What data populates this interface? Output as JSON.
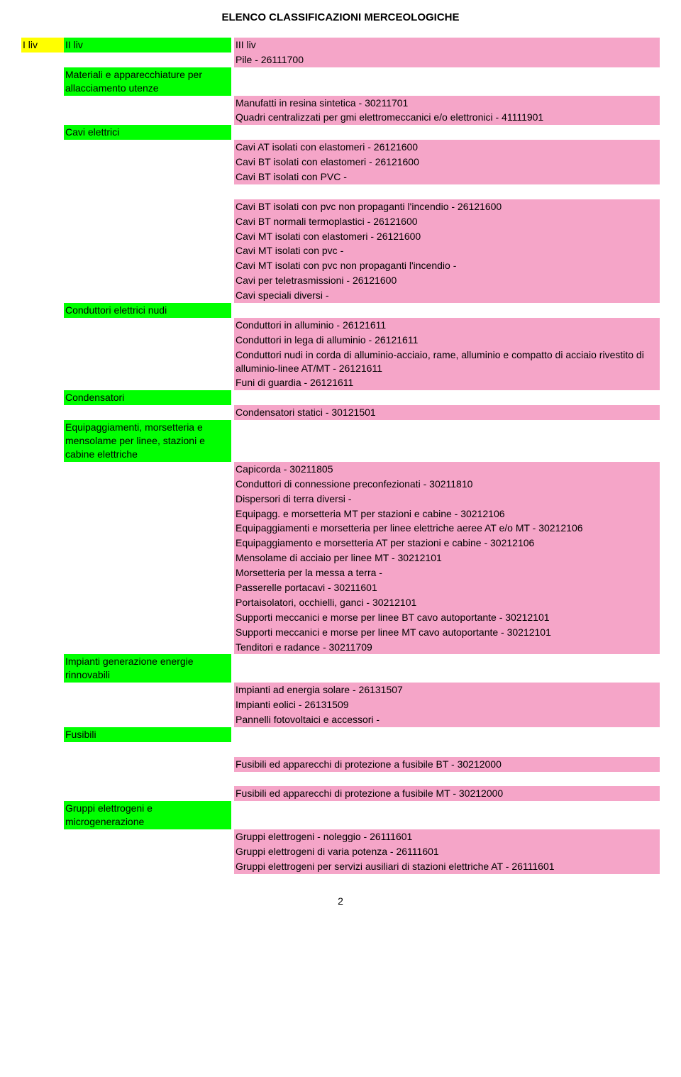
{
  "page_title": "ELENCO CLASSIFICAZIONI MERCEOLOGICHE",
  "page_number": "2",
  "colors": {
    "col1_bg": "#ffff00",
    "col2_bg": "#00ff00",
    "col3_bg": "#f5a5c8",
    "text": "#000000"
  },
  "header": {
    "c1": "I liv",
    "c2": "II liv",
    "c3": "III liv"
  },
  "blocks": [
    {
      "c3": "Pile - 26111700"
    },
    {
      "c2": "Materiali e apparecchiature per allacciamento utenze"
    },
    {
      "c3": "Manufatti in resina sintetica - 30211701"
    },
    {
      "c3": "Quadri centralizzati per gmi elettromeccanici e/o elettronici - 41111901"
    },
    {
      "c2": "Cavi elettrici"
    },
    {
      "c3": "Cavi AT isolati con elastomeri - 26121600"
    },
    {
      "c3": "Cavi BT isolati con elastomeri - 26121600"
    },
    {
      "c3": "Cavi BT isolati con PVC -"
    },
    {
      "gap": true
    },
    {
      "c3": "Cavi BT isolati con pvc non propaganti l'incendio - 26121600"
    },
    {
      "c3": "Cavi BT normali termoplastici - 26121600"
    },
    {
      "c3": "Cavi MT isolati con elastomeri - 26121600"
    },
    {
      "c3": "Cavi MT isolati con pvc -"
    },
    {
      "c3": "Cavi MT isolati con pvc non propaganti l'incendio -"
    },
    {
      "c3": "Cavi per teletrasmissioni - 26121600"
    },
    {
      "c3": "Cavi speciali diversi -"
    },
    {
      "c2": "Conduttori elettrici nudi"
    },
    {
      "c3": "Conduttori in alluminio - 26121611"
    },
    {
      "c3": "Conduttori in lega di alluminio - 26121611"
    },
    {
      "c3": "Conduttori nudi in corda di alluminio-acciaio, rame, alluminio e compatto di acciaio rivestito di alluminio-linee AT/MT - 26121611"
    },
    {
      "c3": "Funi di guardia - 26121611"
    },
    {
      "c2": "Condensatori"
    },
    {
      "c3": "Condensatori statici - 30121501"
    },
    {
      "c2": "Equipaggiamenti, morsetteria e mensolame per linee, stazioni e cabine elettriche"
    },
    {
      "c3": "Capicorda - 30211805"
    },
    {
      "c3": "Conduttori di connessione preconfezionati - 30211810"
    },
    {
      "c3": "Dispersori di terra diversi -"
    },
    {
      "c3": "Equipagg. e morsetteria MT per stazioni e cabine - 30212106"
    },
    {
      "c3": "Equipaggiamenti e morsetteria per linee elettriche aeree AT e/o MT - 30212106"
    },
    {
      "c3": "Equipaggiamento e morsetteria AT per stazioni e cabine - 30212106"
    },
    {
      "c3": "Mensolame di acciaio per linee MT - 30212101"
    },
    {
      "c3": "Morsetteria per la messa a terra -"
    },
    {
      "c3": "Passerelle portacavi - 30211601"
    },
    {
      "c3": "Portaisolatori, occhielli, ganci - 30212101"
    },
    {
      "c3": "Supporti meccanici e morse per linee BT cavo autoportante - 30212101"
    },
    {
      "c3": "Supporti meccanici e morse per linee MT cavo autoportante - 30212101"
    },
    {
      "c3": "Tenditori e radance - 30211709"
    },
    {
      "c2": "Impianti generazione energie rinnovabili"
    },
    {
      "c3": "Impianti ad energia solare - 26131507"
    },
    {
      "c3": "Impianti eolici - 26131509"
    },
    {
      "c3": "Pannelli fotovoltaici e accessori -"
    },
    {
      "c2": "Fusibili"
    },
    {
      "gap": true
    },
    {
      "c3": "Fusibili ed apparecchi di protezione a fusibile BT - 30212000"
    },
    {
      "gap": true
    },
    {
      "c3": "Fusibili ed apparecchi di protezione a fusibile MT - 30212000"
    },
    {
      "c2": "Gruppi elettrogeni e microgenerazione"
    },
    {
      "c3": "Gruppi elettrogeni - noleggio - 26111601"
    },
    {
      "c3": "Gruppi elettrogeni di varia potenza - 26111601"
    },
    {
      "c3": "Gruppi elettrogeni per servizi ausiliari di stazioni elettriche AT - 26111601"
    }
  ]
}
